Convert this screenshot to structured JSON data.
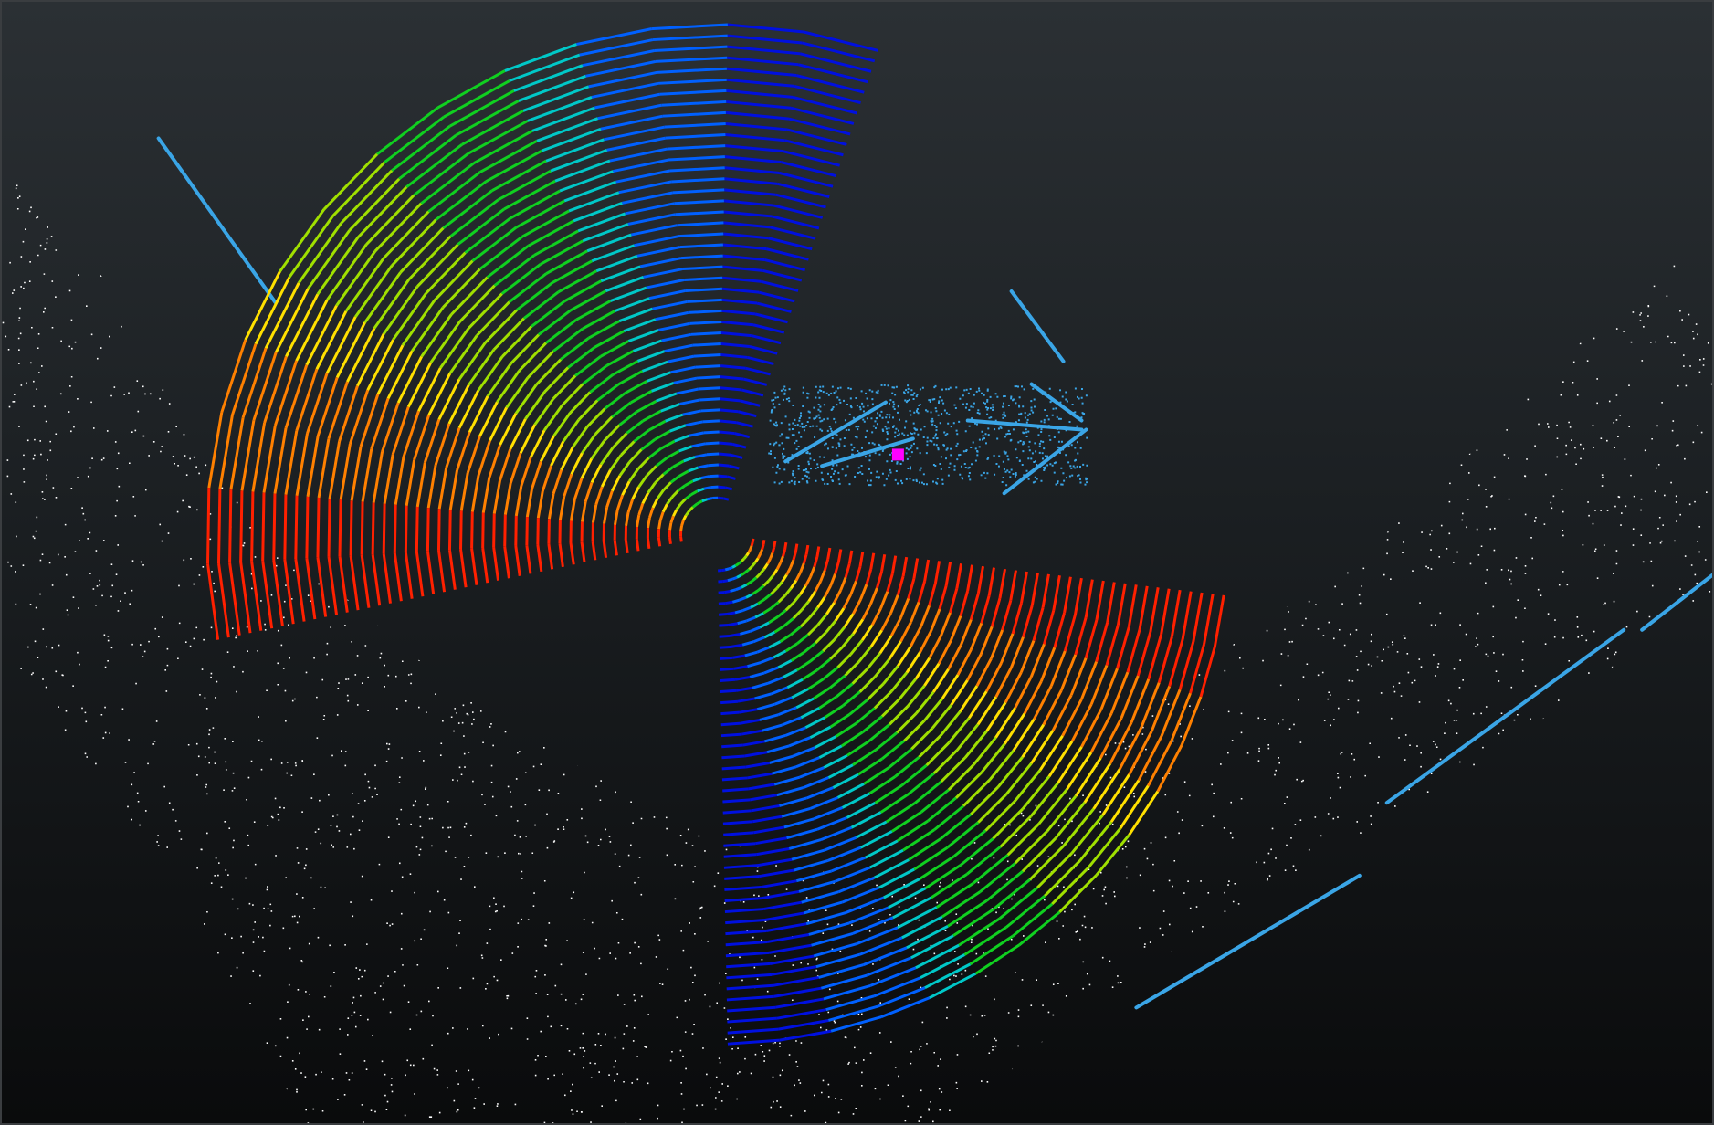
{
  "viewer": {
    "background_top": "#2b3034",
    "background_bottom": "#0a0b0c",
    "border_color": "#3a3d40"
  },
  "point_cloud": {
    "ground_color": "#ffffff",
    "structure_color": "#3aa5e6",
    "origin_marker_color": "#ff00ff",
    "scan_colormap": [
      "#0010e0",
      "#0060ff",
      "#00c8c8",
      "#10d020",
      "#a0e000",
      "#ffe000",
      "#ff8000",
      "#ff2000"
    ]
  }
}
